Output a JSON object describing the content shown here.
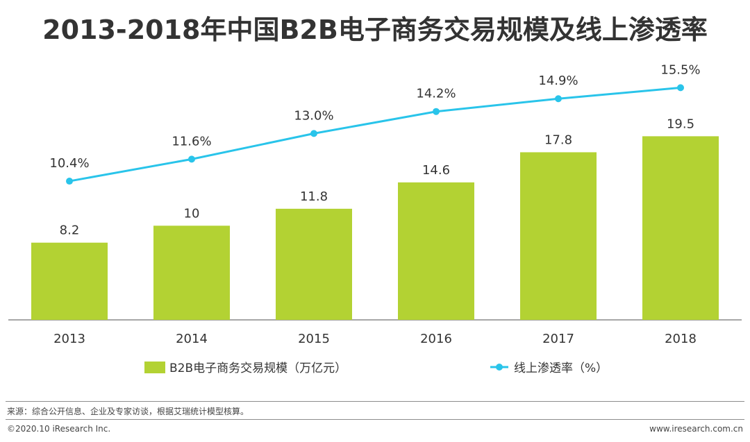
{
  "title": "2013-2018年中国B2B电子商务交易规模及线上渗透率",
  "chart_data": {
    "type": "bar+line",
    "categories": [
      "2013",
      "2014",
      "2015",
      "2016",
      "2017",
      "2018"
    ],
    "series": [
      {
        "name": "B2B电子商务交易规模（万亿元）",
        "type": "bar",
        "values": [
          8.2,
          10,
          11.8,
          14.6,
          17.8,
          19.5
        ],
        "labels": [
          "8.2",
          "10",
          "11.8",
          "14.6",
          "17.8",
          "19.5"
        ],
        "color": "#b3d233"
      },
      {
        "name": "线上渗透率（%）",
        "type": "line",
        "values": [
          10.4,
          11.6,
          13.0,
          14.2,
          14.9,
          15.5
        ],
        "labels": [
          "10.4%",
          "11.6%",
          "13.0%",
          "14.2%",
          "14.9%",
          "15.5%"
        ],
        "color": "#29c4ea"
      }
    ],
    "bar_axis_range": [
      0,
      21
    ],
    "line_axis_range": [
      4,
      16.5
    ],
    "legend": "bottom"
  },
  "footer": {
    "source": "来源：综合公开信息、企业及专家访谈，根据艾瑞统计模型核算。",
    "copyright": "©2020.10 iResearch Inc.",
    "website": "www.iresearch.com.cn"
  }
}
